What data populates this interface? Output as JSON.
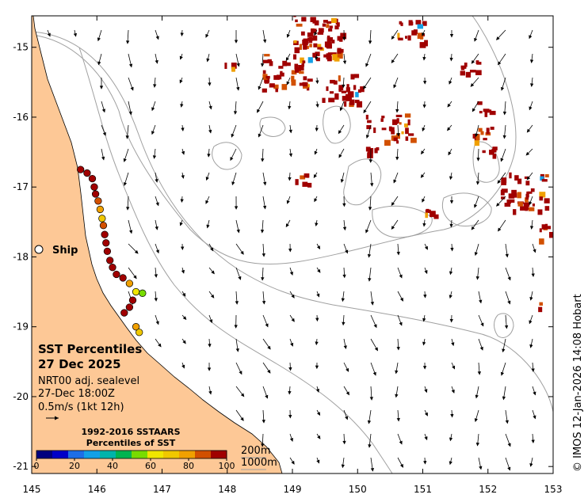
{
  "title": "SST Percentiles",
  "date": "27 Dec 2025",
  "dataset": "NRT00 adj. sealevel",
  "time": "27-Dec 18:00Z",
  "vector_scale": "0.5m/s (1kt 12h)",
  "ship_label": "Ship",
  "credit": "© IMOS 12-Jan-2026 14:08 Hobart",
  "colorbar": {
    "title_line1": "1992-2016 SSTAARS",
    "title_line2": "Percentiles of SST",
    "ticks": [
      "0",
      "20",
      "40",
      "60",
      "80",
      "100"
    ],
    "colors": [
      "#00007f",
      "#0000c8",
      "#1e6ee6",
      "#14a0e6",
      "#00b4aa",
      "#00b450",
      "#78dc00",
      "#f0e600",
      "#f0c800",
      "#f0a000",
      "#d25000",
      "#a00000"
    ]
  },
  "contour_legend": {
    "c200": "200m",
    "c1000": "1000m"
  },
  "axes": {
    "lon_ticks": [
      "145",
      "146",
      "147",
      "148",
      "149",
      "150",
      "151",
      "152",
      "153"
    ],
    "lat_ticks": [
      "-15",
      "-16",
      "-17",
      "-18",
      "-19",
      "-20",
      "-21"
    ],
    "lon_range": [
      145,
      153
    ],
    "lat_range": [
      -21.1,
      -14.55
    ]
  },
  "colors": {
    "land": "#fdc896",
    "hot": "#a00000",
    "contour": "#a0a0a0"
  },
  "ship_track": [
    {
      "lon": 145.75,
      "lat": -16.75,
      "p": 100
    },
    {
      "lon": 145.85,
      "lat": -16.8,
      "p": 100
    },
    {
      "lon": 145.93,
      "lat": -16.88,
      "p": 100
    },
    {
      "lon": 145.96,
      "lat": -17.0,
      "p": 100
    },
    {
      "lon": 145.98,
      "lat": -17.1,
      "p": 98
    },
    {
      "lon": 146.02,
      "lat": -17.2,
      "p": 85
    },
    {
      "lon": 146.05,
      "lat": -17.32,
      "p": 75
    },
    {
      "lon": 146.08,
      "lat": -17.45,
      "p": 70
    },
    {
      "lon": 146.1,
      "lat": -17.55,
      "p": 90
    },
    {
      "lon": 146.12,
      "lat": -17.68,
      "p": 100
    },
    {
      "lon": 146.14,
      "lat": -17.8,
      "p": 100
    },
    {
      "lon": 146.16,
      "lat": -17.92,
      "p": 100
    },
    {
      "lon": 146.2,
      "lat": -18.05,
      "p": 100
    },
    {
      "lon": 146.24,
      "lat": -18.15,
      "p": 100
    },
    {
      "lon": 146.3,
      "lat": -18.25,
      "p": 100
    },
    {
      "lon": 146.4,
      "lat": -18.3,
      "p": 95
    },
    {
      "lon": 146.5,
      "lat": -18.38,
      "p": 80
    },
    {
      "lon": 146.6,
      "lat": -18.5,
      "p": 65
    },
    {
      "lon": 146.7,
      "lat": -18.52,
      "p": 55
    },
    {
      "lon": 146.55,
      "lat": -18.62,
      "p": 100
    },
    {
      "lon": 146.5,
      "lat": -18.72,
      "p": 100
    },
    {
      "lon": 146.42,
      "lat": -18.8,
      "p": 100
    },
    {
      "lon": 146.6,
      "lat": -19.0,
      "p": 75
    },
    {
      "lon": 146.65,
      "lat": -19.08,
      "p": 70
    }
  ]
}
